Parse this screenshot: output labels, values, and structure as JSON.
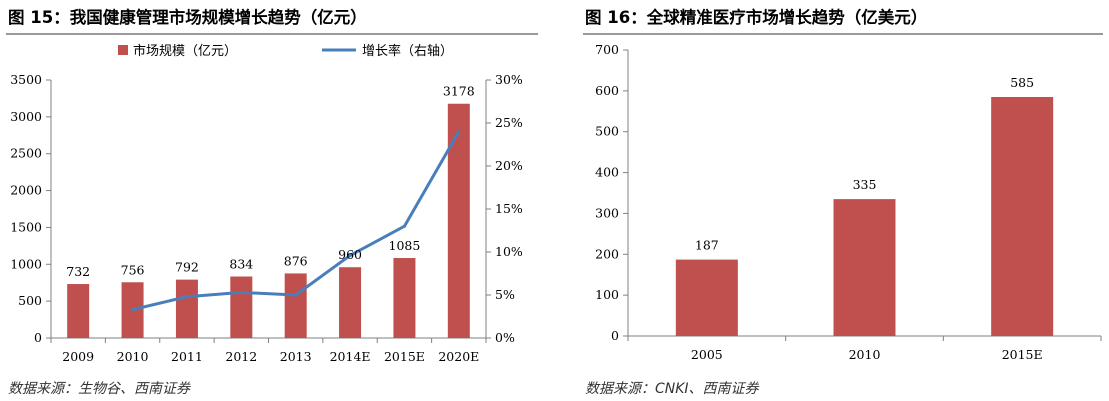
{
  "left": {
    "title": "图 15：我国健康管理市场规模增长趋势（亿元）",
    "source": "数据来源：生物谷、西南证券",
    "legend": {
      "bar": "市场规模（亿元）",
      "line": "增长率（右轴）"
    },
    "colors": {
      "bar": "#c0504d",
      "line": "#4a7ebb"
    }
  },
  "right": {
    "title": "图 16：全球精准医疗市场增长趋势（亿美元）",
    "source": "数据来源：CNKI、西南证券",
    "colors": {
      "bar": "#c0504d"
    }
  },
  "chart_data": [
    {
      "type": "bar",
      "title": "图 15：我国健康管理市场规模增长趋势（亿元）",
      "categories": [
        "2009",
        "2010",
        "2011",
        "2012",
        "2013",
        "2014E",
        "2015E",
        "2020E"
      ],
      "series": [
        {
          "name": "市场规模（亿元）",
          "type": "bar",
          "axis": "left",
          "values": [
            732,
            756,
            792,
            834,
            876,
            960,
            1085,
            3178
          ],
          "color": "#c0504d"
        },
        {
          "name": "增长率（右轴）",
          "type": "line",
          "axis": "right",
          "values": [
            null,
            3.3,
            4.8,
            5.3,
            5.0,
            9.6,
            13.0,
            24.0
          ],
          "color": "#4a7ebb"
        }
      ],
      "ylim": [
        0,
        3500
      ],
      "yticks": [
        "0",
        "500",
        "1000",
        "1500",
        "2000",
        "2500",
        "3000",
        "3500"
      ],
      "y2lim": [
        0,
        30
      ],
      "y2ticks": [
        "0%",
        "5%",
        "10%",
        "15%",
        "20%",
        "25%",
        "30%"
      ],
      "legend_position": "top",
      "grid": false,
      "data_labels": true
    },
    {
      "type": "bar",
      "title": "图 16：全球精准医疗市场增长趋势（亿美元）",
      "categories": [
        "2005",
        "2010",
        "2015E"
      ],
      "series": [
        {
          "type": "bar",
          "values": [
            187,
            335,
            585
          ],
          "color": "#c0504d"
        }
      ],
      "ylim": [
        0,
        700
      ],
      "yticks": [
        "0",
        "100",
        "200",
        "300",
        "400",
        "500",
        "600",
        "700"
      ],
      "grid": false,
      "data_labels": true
    }
  ]
}
